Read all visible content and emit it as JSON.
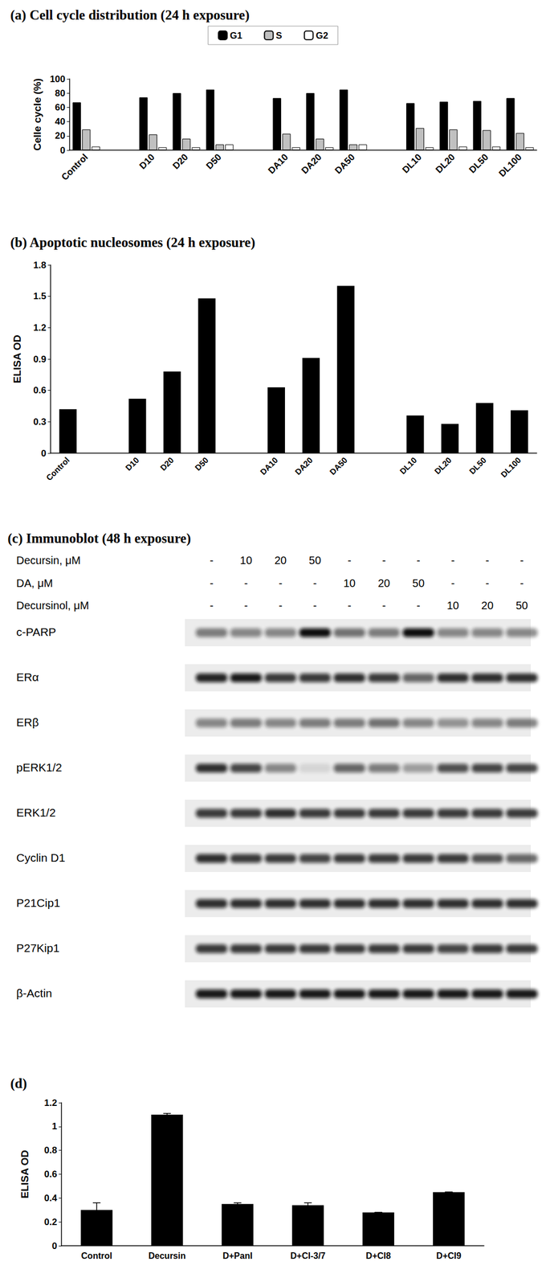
{
  "chart_data": [
    {
      "type": "bar",
      "title": "(a) Cell cycle distribution (24 h exposure)",
      "ylabel": "Celle cycle (%)",
      "categories": [
        "Control",
        null,
        "D10",
        "D20",
        "D50",
        null,
        "DA10",
        "DA20",
        "DA50",
        null,
        "DL10",
        "DL20",
        "DL50",
        "DL100"
      ],
      "series": [
        {
          "name": "G1",
          "color": "#000000",
          "values": [
            67,
            null,
            74,
            80,
            85,
            null,
            73,
            80,
            85,
            null,
            66,
            68,
            69,
            73
          ]
        },
        {
          "name": "S",
          "color": "#c0c0c0",
          "values": [
            29,
            null,
            22,
            16,
            8,
            null,
            23,
            16,
            8,
            null,
            31,
            29,
            28,
            24
          ]
        },
        {
          "name": "G2",
          "color": "#ffffff",
          "values": [
            5,
            null,
            4,
            4,
            8,
            null,
            4,
            4,
            8,
            null,
            4,
            5,
            5,
            4
          ]
        }
      ],
      "ylim": [
        0,
        100
      ],
      "yticks": [
        0,
        20,
        40,
        60,
        80,
        100
      ],
      "grid": false,
      "legend": "top"
    },
    {
      "type": "bar",
      "title": "(b) Apoptotic nucleosomes (24 h exposure)",
      "ylabel": "ELISA OD",
      "categories": [
        "Control",
        null,
        "D10",
        "D20",
        "D50",
        null,
        "DA10",
        "DA20",
        "DA50",
        null,
        "DL10",
        "DL20",
        "DL50",
        "DL100"
      ],
      "values": [
        0.42,
        null,
        0.52,
        0.78,
        1.48,
        null,
        0.63,
        0.91,
        1.6,
        null,
        0.36,
        0.28,
        0.48,
        0.41
      ],
      "color": "#000000",
      "ylim": [
        0,
        1.8
      ],
      "yticks": [
        0,
        0.3,
        0.6,
        0.9,
        1.2,
        1.5,
        1.8
      ],
      "grid": false
    },
    {
      "type": "bar",
      "title": "(d)",
      "ylabel": "ELISA OD",
      "categories": [
        "Control",
        "Decursin",
        "D+PanI",
        "D+CI-3/7",
        "D+CI8",
        "D+CI9"
      ],
      "values": [
        0.3,
        1.1,
        0.35,
        0.34,
        0.28,
        0.45
      ],
      "errors": [
        0.06,
        0.01,
        0.01,
        0.02,
        0,
        0
      ],
      "color": "#000000",
      "ylim": [
        0,
        1.2
      ],
      "yticks": [
        0,
        0.2,
        0.4,
        0.6,
        0.8,
        1,
        1.2
      ],
      "grid": false
    }
  ],
  "immunoblot": {
    "title": "(c) Immunoblot (48 h exposure)",
    "treatments": [
      {
        "label": "Decursin, μM",
        "lanes": [
          "-",
          "10",
          "20",
          "50",
          "-",
          "-",
          "-",
          "-",
          "-",
          "-"
        ]
      },
      {
        "label": "DA, μM",
        "lanes": [
          "-",
          "-",
          "-",
          "-",
          "10",
          "20",
          "50",
          "-",
          "-",
          "-"
        ]
      },
      {
        "label": "Decursinol, μM",
        "lanes": [
          "-",
          "-",
          "-",
          "-",
          "-",
          "-",
          "-",
          "10",
          "20",
          "50"
        ]
      }
    ],
    "rows": [
      {
        "label": "c-PARP",
        "band_intensity": [
          0.5,
          0.45,
          0.45,
          1,
          0.55,
          0.5,
          1,
          0.45,
          0.45,
          0.45
        ]
      },
      {
        "label": "ERα",
        "band_intensity": [
          0.9,
          0.95,
          0.8,
          0.8,
          0.85,
          0.8,
          0.6,
          0.85,
          0.85,
          0.85
        ]
      },
      {
        "label": "ERβ",
        "band_intensity": [
          0.45,
          0.5,
          0.45,
          0.5,
          0.5,
          0.55,
          0.45,
          0.4,
          0.45,
          0.5
        ]
      },
      {
        "label": "pERK1/2",
        "band_intensity": [
          0.85,
          0.75,
          0.45,
          0.1,
          0.6,
          0.5,
          0.35,
          0.7,
          0.75,
          0.75
        ]
      },
      {
        "label": "ERK1/2",
        "band_intensity": [
          0.8,
          0.8,
          0.85,
          0.8,
          0.8,
          0.8,
          0.8,
          0.8,
          0.8,
          0.8
        ]
      },
      {
        "label": "Cyclin D1",
        "band_intensity": [
          0.85,
          0.8,
          0.8,
          0.75,
          0.8,
          0.8,
          0.8,
          0.8,
          0.7,
          0.6
        ]
      },
      {
        "label": "P21Cip1",
        "band_intensity": [
          0.85,
          0.85,
          0.85,
          0.85,
          0.85,
          0.85,
          0.85,
          0.85,
          0.85,
          0.85
        ]
      },
      {
        "label": "P27Kip1",
        "band_intensity": [
          0.8,
          0.8,
          0.8,
          0.8,
          0.8,
          0.8,
          0.8,
          0.75,
          0.8,
          0.8
        ]
      },
      {
        "label": "β-Actin",
        "band_intensity": [
          0.95,
          0.95,
          0.95,
          0.95,
          0.95,
          0.95,
          0.95,
          0.95,
          0.95,
          0.95
        ]
      }
    ]
  }
}
